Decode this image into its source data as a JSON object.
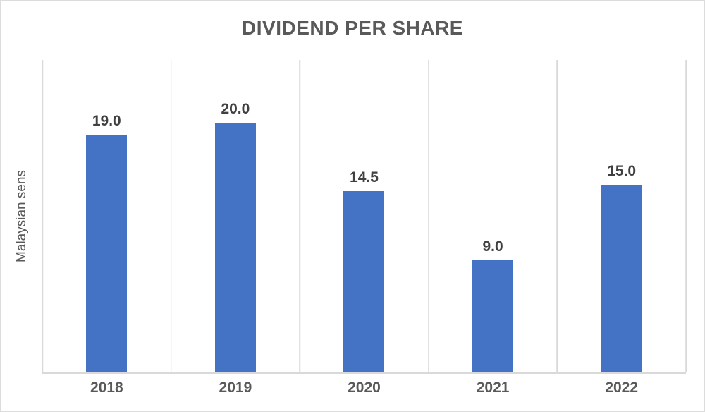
{
  "chart_data": {
    "type": "bar",
    "title": "DIVIDEND PER SHARE",
    "ylabel": "Malaysian sens",
    "xlabel": "",
    "categories": [
      "2018",
      "2019",
      "2020",
      "2021",
      "2022"
    ],
    "values": [
      19.0,
      20.0,
      14.5,
      9.0,
      15.0
    ],
    "data_labels": [
      "19.0",
      "20.0",
      "14.5",
      "9.0",
      "15.0"
    ],
    "ylim": [
      0,
      25
    ],
    "y_tick_labels_visible": false,
    "grid": "vertical",
    "legend_position": "none",
    "colors": {
      "bar": "#4472C4",
      "title_text": "#595959",
      "data_label_text": "#404040",
      "axis_label_text": "#595959",
      "gridline": "#D9D9D9",
      "background": "#FFFFFF"
    }
  }
}
